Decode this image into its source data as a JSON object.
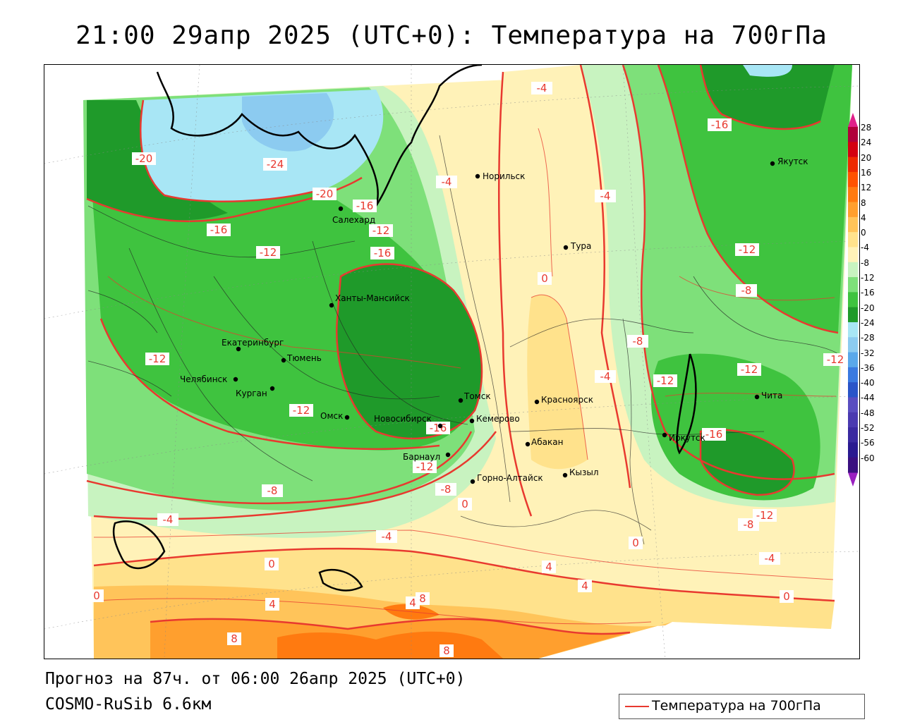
{
  "title": "21:00 29апр 2025 (UTC+0): Температура на 700гПа",
  "footer": {
    "forecast": "Прогноз на 87ч. от 06:00 26апр 2025 (UTC+0)",
    "model": "COSMO-RuSib 6.6км"
  },
  "legend": {
    "label": "Температура на 700гПа",
    "color": "#e8392f"
  },
  "colorbar": {
    "labels": [
      "28",
      "24",
      "20",
      "16",
      "12",
      "8",
      "4",
      "0",
      "-4",
      "-8",
      "-12",
      "-16",
      "-20",
      "-24",
      "-28",
      "-32",
      "-36",
      "-40",
      "-44",
      "-48",
      "-52",
      "-56",
      "-60"
    ],
    "colors": [
      "#b0003a",
      "#d40010",
      "#ee2a00",
      "#ff5200",
      "#ff7a10",
      "#ff9f2e",
      "#ffc45a",
      "#ffe28c",
      "#fff2b8",
      "#c8f3c0",
      "#7ee07a",
      "#3fc33f",
      "#1f9a2a",
      "#a8e6f5",
      "#8ccbf0",
      "#5aa8ea",
      "#3a7ae0",
      "#2a55c8",
      "#5a4ec0",
      "#4a3ab0",
      "#3a2aa0",
      "#2a1a90",
      "#3a1080"
    ],
    "top_color": "#e0208a",
    "bottom_color": "#9a20c0"
  },
  "cities": [
    {
      "name": "Норильск"
    },
    {
      "name": "Салехард"
    },
    {
      "name": "Тура"
    },
    {
      "name": "Якутск"
    },
    {
      "name": "Ханты-Мансийск"
    },
    {
      "name": "Екатеринбург"
    },
    {
      "name": "Тюмень"
    },
    {
      "name": "Челябинск"
    },
    {
      "name": "Курган"
    },
    {
      "name": "Омск"
    },
    {
      "name": "Новосибирск"
    },
    {
      "name": "Томск"
    },
    {
      "name": "Кемерово"
    },
    {
      "name": "Барнаул"
    },
    {
      "name": "Горно-Алтайск"
    },
    {
      "name": "Абакан"
    },
    {
      "name": "Красноярск"
    },
    {
      "name": "Кызыл"
    },
    {
      "name": "Иркутск"
    },
    {
      "name": "Чита"
    }
  ],
  "isotherm_labels": [
    "-20",
    "-24",
    "-20",
    "-16",
    "-16",
    "-12",
    "-16",
    "-12",
    "-12",
    "-12",
    "-12",
    "-8",
    "-4",
    "-4",
    "0",
    "0",
    "4",
    "8",
    "4",
    "8",
    "8",
    "4",
    "4",
    "0",
    "-4",
    "-8",
    "-12",
    "0",
    "0",
    "-4",
    "-4",
    "-8",
    "-4",
    "0",
    "-12",
    "-16",
    "-12",
    "-8",
    "-12",
    "-12",
    "-16",
    "-8",
    "-16",
    "-4"
  ]
}
